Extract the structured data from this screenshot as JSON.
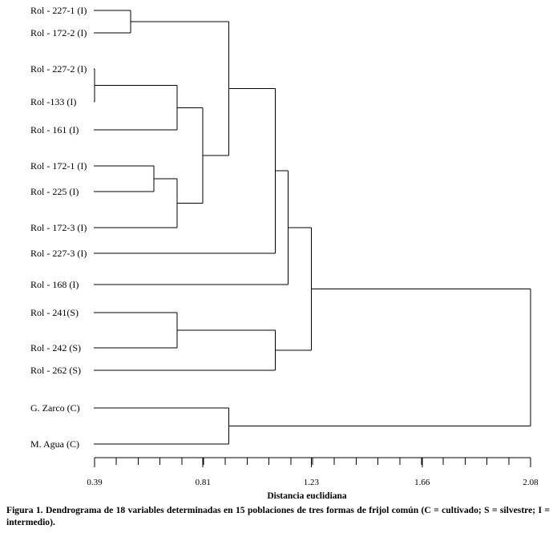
{
  "chart_data": {
    "type": "dendrogram",
    "orientation": "horizontal",
    "xlabel": "Distancia euclidiana",
    "xlim": [
      0.39,
      2.08
    ],
    "ticks": [
      {
        "value": 0.39,
        "label": "0.39"
      },
      {
        "value": 0.81,
        "label": "0.81"
      },
      {
        "value": 1.23,
        "label": "1.23"
      },
      {
        "value": 1.66,
        "label": "1.66"
      },
      {
        "value": 2.08,
        "label": "2.08"
      }
    ],
    "minor_tick_step": 0.0845,
    "leaves": [
      {
        "id": "L1",
        "label": "Rol - 227-1 (I)"
      },
      {
        "id": "L2",
        "label": "Rol - 172-2 (I)"
      },
      {
        "id": "L3",
        "label": "Rol - 227-2 (I)"
      },
      {
        "id": "L4",
        "label": "Rol -133 (I)"
      },
      {
        "id": "L5",
        "label": "Rol - 161 (I)"
      },
      {
        "id": "L6",
        "label": "Rol - 172-1 (I)"
      },
      {
        "id": "L7",
        "label": "Rol - 225 (I)"
      },
      {
        "id": "L8",
        "label": "Rol - 172-3 (I)"
      },
      {
        "id": "L9",
        "label": "Rol - 227-3 (I)"
      },
      {
        "id": "L10",
        "label": "Rol - 168 (I)"
      },
      {
        "id": "L11",
        "label": "Rol - 241(S)"
      },
      {
        "id": "L12",
        "label": "Rol - 242 (S)"
      },
      {
        "id": "L13",
        "label": "Rol - 262 (S)"
      },
      {
        "id": "L14",
        "label": "G. Zarco (C)"
      },
      {
        "id": "L15",
        "label": "M. Agua (C)"
      }
    ],
    "merges": [
      {
        "id": "N1",
        "children": [
          "L3",
          "L4"
        ],
        "height": 0.39
      },
      {
        "id": "N2",
        "children": [
          "L1",
          "L2"
        ],
        "height": 0.53
      },
      {
        "id": "N3",
        "children": [
          "L6",
          "L7"
        ],
        "height": 0.62
      },
      {
        "id": "N4",
        "children": [
          "N1",
          "L5"
        ],
        "height": 0.71
      },
      {
        "id": "N5",
        "children": [
          "N3",
          "L8"
        ],
        "height": 0.71
      },
      {
        "id": "N6",
        "children": [
          "L11",
          "L12"
        ],
        "height": 0.71
      },
      {
        "id": "N7",
        "children": [
          "N4",
          "N5"
        ],
        "height": 0.81
      },
      {
        "id": "N8",
        "children": [
          "N2",
          "N7"
        ],
        "height": 0.91
      },
      {
        "id": "N9",
        "children": [
          "L14",
          "L15"
        ],
        "height": 0.91
      },
      {
        "id": "N10",
        "children": [
          "N8",
          "L9"
        ],
        "height": 1.09
      },
      {
        "id": "N11",
        "children": [
          "N6",
          "L13"
        ],
        "height": 1.09
      },
      {
        "id": "N12",
        "children": [
          "N10",
          "L10"
        ],
        "height": 1.14
      },
      {
        "id": "N13",
        "children": [
          "N12",
          "N11"
        ],
        "height": 1.23
      },
      {
        "id": "N14",
        "children": [
          "N13",
          "N9"
        ],
        "height": 2.08
      }
    ]
  },
  "caption": {
    "label": "Figura 1.",
    "text": "Dendrograma de 18 variables determinadas en 15 poblaciones de tres formas de frijol común (C = cultivado; S = silvestre; I = intermedio)."
  }
}
